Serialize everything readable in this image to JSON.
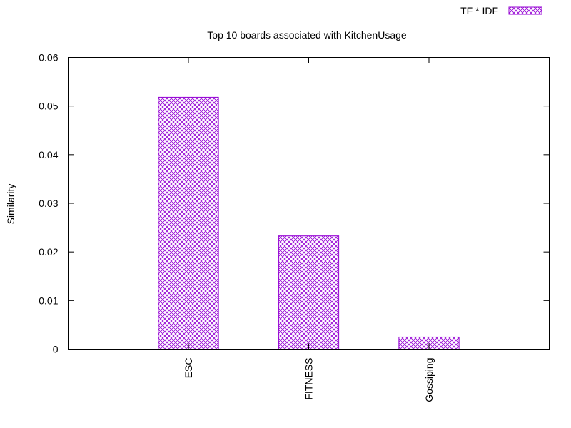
{
  "chart_data": {
    "type": "bar",
    "title": "Top 10 boards associated with KitchenUsage",
    "xlabel": "",
    "ylabel": "Similarity",
    "categories": [
      "ESC",
      "FITNESS",
      "Gossiping"
    ],
    "series": [
      {
        "name": "TF * IDF",
        "values": [
          0.0518,
          0.0233,
          0.0025
        ],
        "color": "#9400d3"
      }
    ],
    "ylim": [
      0,
      0.06
    ],
    "yticks": [
      "0",
      "0.01",
      "0.02",
      "0.03",
      "0.04",
      "0.05",
      "0.06"
    ],
    "grid": false,
    "legend_position": "top-right"
  }
}
